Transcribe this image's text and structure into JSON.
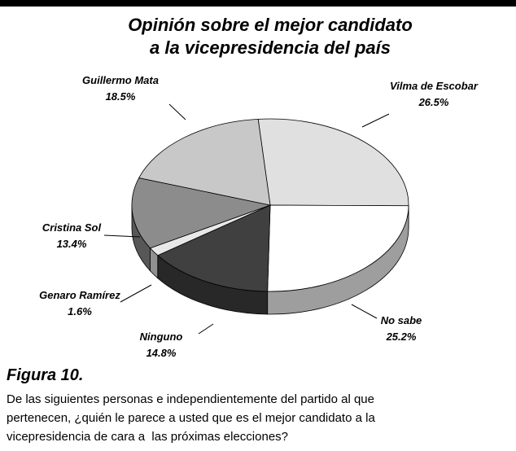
{
  "chart_data": {
    "type": "pie",
    "title": [
      "Opinión sobre el mejor candidato",
      "a la vicepresidencia del país"
    ],
    "categories": [
      "Vilma de Escobar",
      "No sabe",
      "Ninguno",
      "Genaro Ramírez",
      "Cristina Sol",
      "Guillermo Mata"
    ],
    "values": [
      26.5,
      25.2,
      14.8,
      1.6,
      13.4,
      18.5
    ],
    "value_labels": [
      "26.5%",
      "25.2%",
      "14.8%",
      "1.6%",
      "13.4%",
      "18.5%"
    ],
    "colors": [
      "#e0e0e0",
      "#ffffff",
      "#404040",
      "#e8e8e8",
      "#8c8c8c",
      "#c8c8c8"
    ]
  },
  "caption": {
    "figure": "Figura 10.",
    "lines": [
      "De las siguientes personas e independientemente del partido al que",
      "pertenecen, ¿quién le parece a usted que es el mejor candidato a la",
      "vicepresidencia de cara a  las próximas elecciones?"
    ]
  }
}
